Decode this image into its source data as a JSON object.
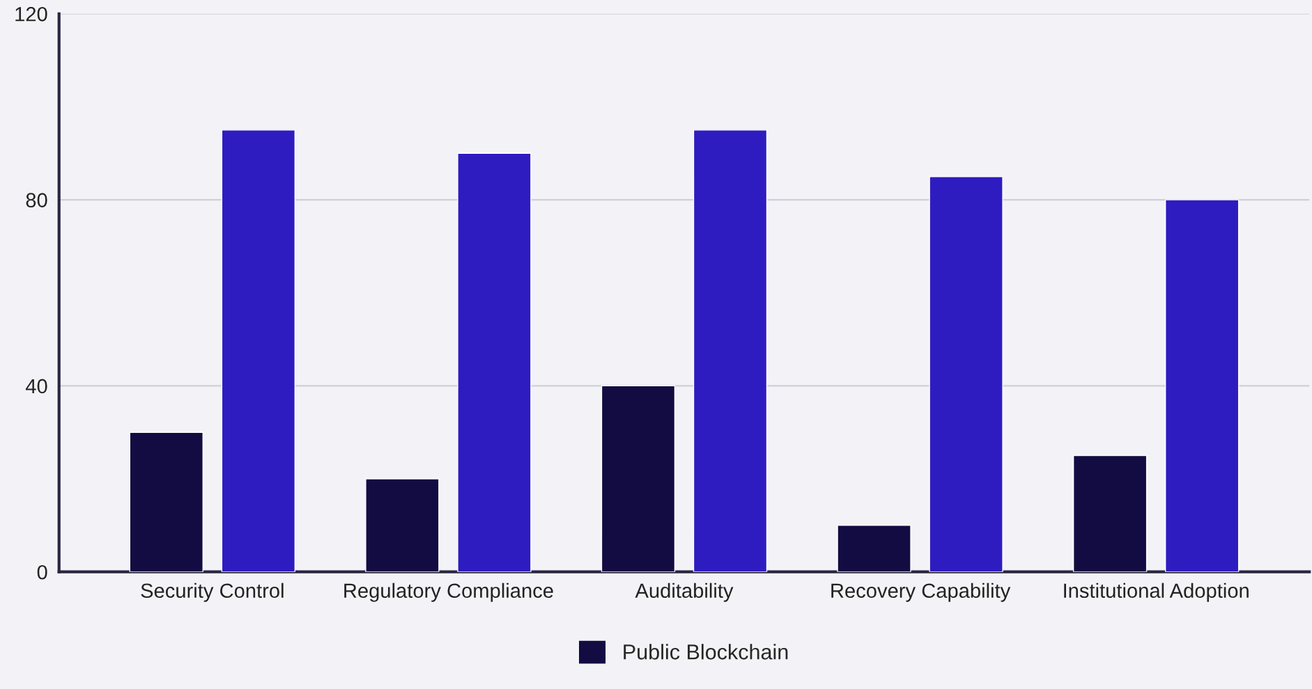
{
  "chart_data": {
    "type": "bar",
    "categories": [
      "Security Control",
      "Regulatory Compliance",
      "Auditability",
      "Recovery Capability",
      "Institutional Adoption"
    ],
    "series": [
      {
        "name": "Public Blockchain",
        "color": "#130c42",
        "values": [
          30,
          20,
          40,
          10,
          25
        ]
      },
      {
        "color": "#2e1cc0",
        "values": [
          95,
          90,
          95,
          85,
          80
        ]
      }
    ],
    "ylim": [
      0,
      120
    ],
    "yticks": [
      0,
      40,
      80,
      120
    ],
    "grid": "y",
    "legend": "bottom"
  }
}
